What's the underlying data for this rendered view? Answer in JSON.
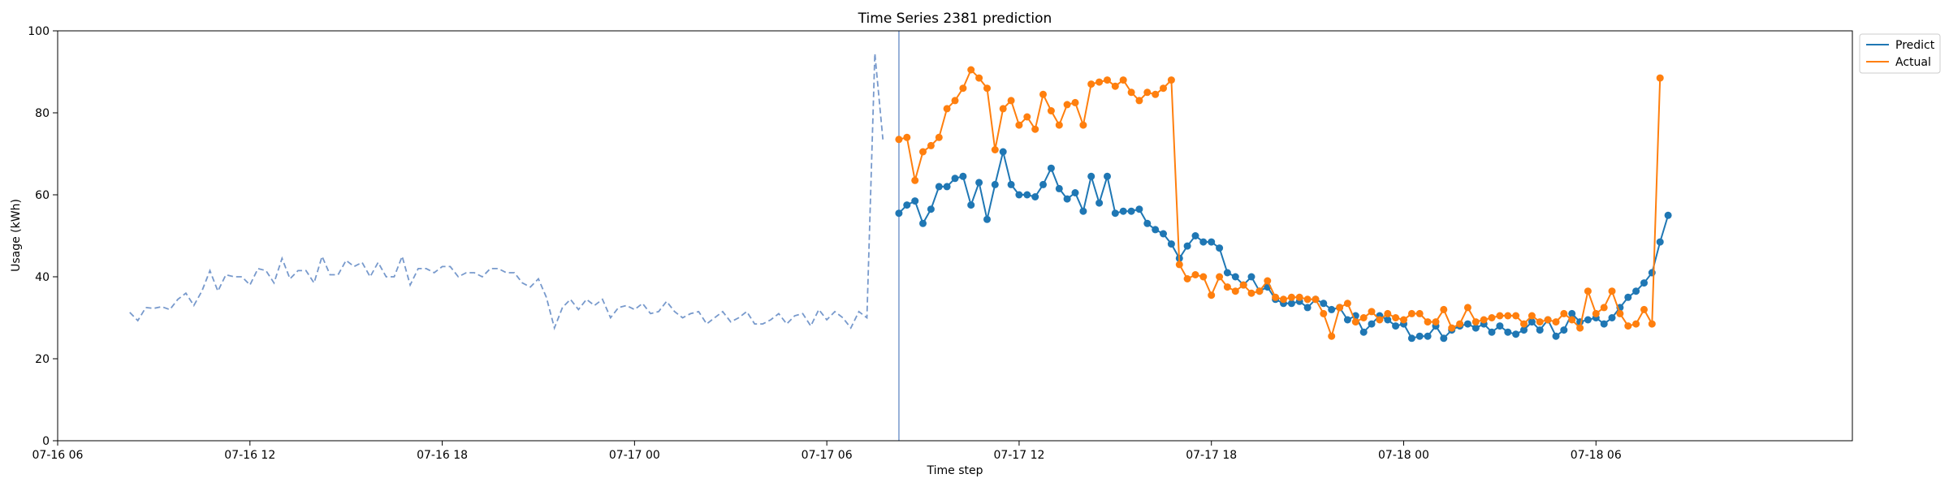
{
  "chart_data": {
    "type": "line",
    "title": "Time Series 2381 prediction",
    "xlabel": "Time step",
    "ylabel": "Usage (kWh)",
    "xlim": [
      "07-16 06:00",
      "07-18 14:00"
    ],
    "ylim": [
      0,
      100
    ],
    "x_unit": "hour",
    "x_ticks": [
      "07-16 06",
      "07-16 12",
      "07-16 18",
      "07-17 00",
      "07-17 06",
      "07-17 12",
      "07-17 18",
      "07-18 00",
      "07-18 06"
    ],
    "y_ticks": [
      0,
      20,
      40,
      60,
      80,
      100
    ],
    "grid": false,
    "legend_position": "outside-top-right",
    "forecast_start": "07-17 08:15",
    "history": {
      "start": "07-16 08:15",
      "step_minutes": 15,
      "color": "#7799cc",
      "style": "dashed",
      "values": [
        31.3,
        29.3,
        32.5,
        32.3,
        32.7,
        32.0,
        34.5,
        36.0,
        33.0,
        36.5,
        41.5,
        36.5,
        40.5,
        40.0,
        40.0,
        38.0,
        42.0,
        41.5,
        38.5,
        44.5,
        39.5,
        41.5,
        41.5,
        38.5,
        45.0,
        40.5,
        40.5,
        44.0,
        42.5,
        43.5,
        40.0,
        43.5,
        40.0,
        40.0,
        45.0,
        38.0,
        42.0,
        42.0,
        41.0,
        42.5,
        42.5,
        40.0,
        41.0,
        41.0,
        40.0,
        42.0,
        42.0,
        41.0,
        41.0,
        38.5,
        37.5,
        39.5,
        35.0,
        27.5,
        32.5,
        34.5,
        32.0,
        34.5,
        33.0,
        34.5,
        30.0,
        32.5,
        33.0,
        32.0,
        33.5,
        31.0,
        31.5,
        34.0,
        31.5,
        30.0,
        31.0,
        31.5,
        28.5,
        30.0,
        31.5,
        29.0,
        30.0,
        31.5,
        28.5,
        28.5,
        29.5,
        31.0,
        28.5,
        30.5,
        31.0,
        28.0,
        32.0,
        29.5,
        31.5,
        30.0,
        27.5,
        31.5,
        30.0,
        94.5,
        73.5
      ]
    },
    "series": [
      {
        "name": "Predict",
        "color": "#1f77b4",
        "start": "07-17 08:15",
        "step_minutes": 15,
        "values": [
          55.5,
          57.5,
          58.5,
          53.0,
          56.5,
          62.0,
          62.0,
          64.0,
          64.5,
          57.5,
          63.0,
          54.0,
          62.5,
          70.5,
          62.5,
          60.0,
          60.0,
          59.5,
          62.5,
          66.5,
          61.5,
          59.0,
          60.5,
          56.0,
          64.5,
          58.0,
          64.5,
          55.5,
          56.0,
          56.0,
          56.5,
          53.0,
          51.5,
          50.5,
          48.0,
          44.5,
          47.5,
          50.0,
          48.5,
          48.5,
          47.0,
          41.0,
          40.0,
          38.0,
          40.0,
          36.5,
          37.5,
          34.5,
          33.5,
          33.5,
          34.0,
          32.5,
          34.5,
          33.5,
          32.0,
          32.5,
          29.5,
          30.5,
          26.5,
          28.5,
          30.5,
          29.5,
          28.0,
          28.5,
          25.0,
          25.5,
          25.5,
          28.0,
          25.0,
          27.0,
          28.0,
          28.5,
          27.5,
          28.5,
          26.5,
          28.0,
          26.5,
          26.0,
          27.0,
          29.0,
          27.0,
          29.5,
          25.5,
          27.0,
          31.0,
          29.0,
          29.5,
          30.0,
          28.5,
          30.0,
          32.5,
          35.0,
          36.5,
          38.5,
          41.0,
          48.5,
          55.0
        ]
      },
      {
        "name": "Actual",
        "color": "#ff7f0e",
        "start": "07-17 08:15",
        "step_minutes": 15,
        "values": [
          73.5,
          74.0,
          63.5,
          70.5,
          72.0,
          74.0,
          81.0,
          83.0,
          86.0,
          90.5,
          88.5,
          86.0,
          71.0,
          81.0,
          83.0,
          77.0,
          79.0,
          76.0,
          84.5,
          80.5,
          77.0,
          82.0,
          82.5,
          77.0,
          87.0,
          87.5,
          88.0,
          86.5,
          88.0,
          85.0,
          83.0,
          85.0,
          84.5,
          86.0,
          88.0,
          43.0,
          39.5,
          40.5,
          40.0,
          35.5,
          40.0,
          37.5,
          36.5,
          38.0,
          36.0,
          36.5,
          39.0,
          35.0,
          34.5,
          35.0,
          35.0,
          34.5,
          34.5,
          31.0,
          25.5,
          32.5,
          33.5,
          29.0,
          30.0,
          31.5,
          29.5,
          31.0,
          30.0,
          29.5,
          31.0,
          31.0,
          29.0,
          29.0,
          32.0,
          27.5,
          28.5,
          32.5,
          29.0,
          29.5,
          30.0,
          30.5,
          30.5,
          30.5,
          28.5,
          30.5,
          29.0,
          29.5,
          29.0,
          31.0,
          29.5,
          27.5,
          36.5,
          31.0,
          32.5,
          36.5,
          31.0,
          28.0,
          28.5,
          32.0,
          28.5,
          88.5
        ]
      }
    ]
  }
}
